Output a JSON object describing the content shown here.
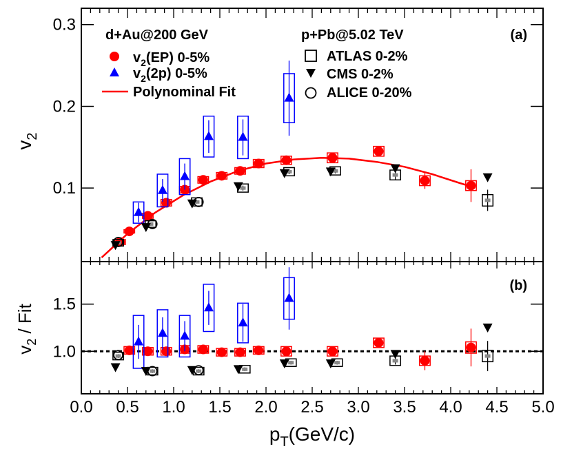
{
  "colors": {
    "ep": "#ff0000",
    "tp": "#0000ff",
    "ref": "#000000",
    "sysgray": "#888888"
  },
  "chart_data": [
    {
      "panel": "a",
      "type": "scatter",
      "panel_label": "(a)",
      "xlim": [
        0,
        5
      ],
      "ylim": [
        0.01,
        0.32
      ],
      "ylabel_main": "v",
      "ylabel_sub": "2",
      "yticks": [
        0.1,
        0.2,
        0.3
      ],
      "ytick_labels": [
        "0.1",
        "0.2",
        "0.3"
      ],
      "header_left": "d+Au@200 GeV",
      "header_right": "p+Pb@5.02 TeV",
      "legend": {
        "ep": {
          "pre": "v",
          "sub": "2",
          "post": "(EP) 0-5%"
        },
        "tp": {
          "pre": "v",
          "sub": "2",
          "post": "(2p) 0-5%"
        },
        "fit": "Polynominal Fit",
        "atlas": "ATLAS 0-2%",
        "cms": "CMS 0-2%",
        "alice": "ALICE 0-20%"
      },
      "fit": {
        "x": [
          0.22,
          0.5,
          0.8,
          1.1,
          1.4,
          1.7,
          2.0,
          2.3,
          2.6,
          2.9,
          3.2,
          3.5,
          3.8,
          4.1,
          4.22
        ],
        "y": [
          0.015,
          0.044,
          0.07,
          0.091,
          0.108,
          0.121,
          0.13,
          0.135,
          0.137,
          0.136,
          0.132,
          0.126,
          0.117,
          0.106,
          0.102
        ]
      },
      "series": [
        {
          "name": "v2(EP) 0-5%",
          "marker": "circle",
          "color": "ep",
          "box_w": 0.1,
          "x": [
            0.42,
            0.52,
            0.72,
            0.92,
            1.12,
            1.32,
            1.52,
            1.72,
            1.92,
            2.22,
            2.72,
            3.22,
            3.72,
            4.22
          ],
          "y": [
            0.034,
            0.047,
            0.066,
            0.082,
            0.098,
            0.11,
            0.115,
            0.121,
            0.13,
            0.134,
            0.137,
            0.145,
            0.109,
            0.103
          ],
          "err": [
            0.002,
            0.002,
            0.003,
            0.003,
            0.003,
            0.003,
            0.003,
            0.003,
            0.004,
            0.004,
            0.006,
            0.006,
            0.01,
            0.02
          ],
          "sys": [
            0.003,
            0.002,
            0.003,
            0.004,
            0.004,
            0.004,
            0.004,
            0.004,
            0.005,
            0.005,
            0.006,
            0.006,
            0.006,
            0.006
          ]
        },
        {
          "name": "v2(2p) 0-5%",
          "marker": "triangle-up",
          "color": "tp",
          "box_w": 0.1,
          "x": [
            0.62,
            0.88,
            1.12,
            1.38,
            1.75,
            2.25
          ],
          "y": [
            0.07,
            0.097,
            0.114,
            0.163,
            0.162,
            0.21
          ],
          "err": [
            0.012,
            0.014,
            0.016,
            0.02,
            0.022,
            0.046
          ],
          "sys": [
            0.013,
            0.02,
            0.022,
            0.025,
            0.026,
            0.03
          ]
        },
        {
          "name": "ATLAS 0-2%",
          "marker": "square-open",
          "color": "ref",
          "box_w": 0.1,
          "x": [
            0.4,
            0.75,
            1.25,
            1.75,
            2.25,
            2.75,
            3.4,
            4.4
          ],
          "y": [
            0.033,
            0.056,
            0.083,
            0.1,
            0.12,
            0.121,
            0.116,
            0.085
          ],
          "err": [
            0.002,
            0.002,
            0.002,
            0.003,
            0.003,
            0.003,
            0.006,
            0.013
          ],
          "sys": [
            0.004,
            0.004,
            0.005,
            0.005,
            0.005,
            0.005,
            0.006,
            0.007
          ]
        },
        {
          "name": "CMS 0-2%",
          "marker": "triangle-down",
          "color": "ref",
          "x": [
            0.37,
            0.7,
            1.2,
            1.7,
            2.2,
            2.7,
            3.4,
            4.4
          ],
          "y": [
            0.03,
            0.052,
            0.081,
            0.102,
            0.118,
            0.12,
            0.124,
            0.113
          ]
        },
        {
          "name": "ALICE 0-20%",
          "marker": "circle-open",
          "color": "ref",
          "x": [
            0.4,
            0.77,
            1.27
          ],
          "y": [
            0.034,
            0.056,
            0.083
          ]
        }
      ]
    },
    {
      "panel": "b",
      "type": "scatter",
      "panel_label": "(b)",
      "xlim": [
        0,
        5
      ],
      "ylim": [
        0.55,
        1.95
      ],
      "ylabel_main": "v",
      "ylabel_sub": "2",
      "ylabel_post": " / Fit",
      "yticks": [
        1.0,
        1.5
      ],
      "ytick_labels": [
        "1.0",
        "1.5"
      ],
      "reference_line": 1.0,
      "xticks": [
        0,
        0.5,
        1,
        1.5,
        2,
        2.5,
        3,
        3.5,
        4,
        4.5,
        5
      ],
      "xtick_labels": [
        "0.0",
        "0.5",
        "1.0",
        "1.5",
        "2.0",
        "2.5",
        "3.0",
        "3.5",
        "4.0",
        "4.5",
        "5.0"
      ],
      "xlabel_main": "p",
      "xlabel_sub": "T",
      "xlabel_post": "(GeV/c)",
      "series": [
        {
          "name": "v2(EP) 0-5%",
          "marker": "circle",
          "color": "ep",
          "box_w": 0.1,
          "x": [
            0.52,
            0.72,
            0.92,
            1.12,
            1.32,
            1.52,
            1.72,
            1.92,
            2.22,
            2.72,
            3.22,
            3.72,
            4.22
          ],
          "y": [
            1.01,
            1.0,
            1.0,
            1.02,
            1.02,
            0.99,
            0.99,
            1.01,
            1.0,
            1.0,
            1.09,
            0.9,
            1.04
          ],
          "err": [
            0.02,
            0.02,
            0.02,
            0.02,
            0.02,
            0.02,
            0.02,
            0.02,
            0.03,
            0.04,
            0.04,
            0.1,
            0.2
          ],
          "sys": [
            0.04,
            0.04,
            0.04,
            0.04,
            0.04,
            0.04,
            0.04,
            0.04,
            0.05,
            0.05,
            0.05,
            0.05,
            0.06
          ]
        },
        {
          "name": "v2(2p) 0-5%",
          "marker": "triangle-up",
          "color": "tp",
          "box_w": 0.1,
          "x": [
            0.62,
            0.88,
            1.12,
            1.38,
            1.75,
            2.25
          ],
          "y": [
            1.1,
            1.19,
            1.16,
            1.46,
            1.3,
            1.56
          ],
          "err": [
            0.18,
            0.17,
            0.16,
            0.18,
            0.2,
            0.33
          ],
          "sys": [
            0.28,
            0.25,
            0.22,
            0.25,
            0.21,
            0.22
          ]
        },
        {
          "name": "ATLAS 0-2%",
          "marker": "square-open",
          "color": "ref",
          "box_w": 0.1,
          "x": [
            0.4,
            0.77,
            1.27,
            1.77,
            2.27,
            2.77,
            3.4,
            4.4
          ],
          "y": [
            0.95,
            0.79,
            0.79,
            0.81,
            0.88,
            0.88,
            0.9,
            0.95
          ],
          "err": [
            0.02,
            0.02,
            0.02,
            0.02,
            0.02,
            0.02,
            0.04,
            0.16
          ],
          "sys": [
            0.04,
            0.04,
            0.04,
            0.04,
            0.04,
            0.04,
            0.05,
            0.06
          ]
        },
        {
          "name": "CMS 0-2%",
          "marker": "triangle-down",
          "color": "ref",
          "x": [
            0.37,
            0.7,
            1.2,
            1.7,
            2.2,
            2.7,
            3.4,
            4.4
          ],
          "y": [
            0.83,
            0.79,
            0.8,
            0.81,
            0.87,
            0.87,
            0.97,
            1.25
          ]
        },
        {
          "name": "ALICE 0-20%",
          "marker": "circle-open",
          "color": "ref",
          "x": [
            0.4,
            0.77,
            1.27
          ],
          "y": [
            0.96,
            0.79,
            0.8
          ]
        }
      ]
    }
  ]
}
